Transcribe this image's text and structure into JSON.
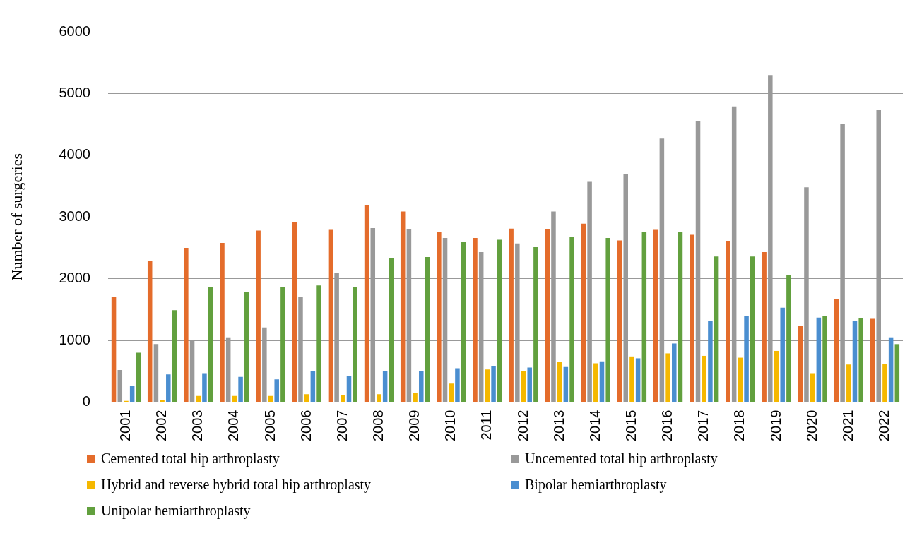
{
  "chart_data": {
    "type": "bar",
    "ylabel": "Number of surgeries",
    "categories": [
      "2001",
      "2002",
      "2003",
      "2004",
      "2005",
      "2006",
      "2007",
      "2008",
      "2009",
      "2010",
      "2011",
      "2012",
      "2013",
      "2014",
      "2015",
      "2016",
      "2017",
      "2018",
      "2019",
      "2020",
      "2021",
      "2022"
    ],
    "series": [
      {
        "name": "Cemented total hip arthroplasty",
        "color": "#e46c2b",
        "values": [
          1700,
          2290,
          2500,
          2580,
          2780,
          2910,
          2790,
          3190,
          3090,
          2760,
          2660,
          2810,
          2800,
          2890,
          2620,
          2790,
          2710,
          2610,
          2430,
          1230,
          1670,
          1350
        ]
      },
      {
        "name": "Uncemented total hip arthroplasty",
        "color": "#999999",
        "values": [
          520,
          940,
          1000,
          1050,
          1210,
          1700,
          2100,
          2820,
          2800,
          2660,
          2430,
          2570,
          3090,
          3570,
          3700,
          4270,
          4560,
          4790,
          5300,
          3480,
          4510,
          4730
        ]
      },
      {
        "name": "Hybrid and reverse hybrid total hip arthroplasty",
        "color": "#f5b800",
        "values": [
          20,
          40,
          100,
          100,
          100,
          130,
          110,
          130,
          150,
          300,
          530,
          500,
          650,
          630,
          740,
          790,
          750,
          720,
          830,
          470,
          610,
          620
        ]
      },
      {
        "name": "Bipolar hemiarthroplasty",
        "color": "#4a8ed0",
        "values": [
          260,
          450,
          470,
          410,
          370,
          510,
          420,
          510,
          510,
          550,
          590,
          560,
          570,
          660,
          710,
          950,
          1310,
          1400,
          1530,
          1370,
          1320,
          1050
        ]
      },
      {
        "name": "Unipolar hemiarthroplasty",
        "color": "#62a03e",
        "values": [
          800,
          1490,
          1870,
          1780,
          1870,
          1890,
          1860,
          2330,
          2350,
          2590,
          2630,
          2510,
          2680,
          2660,
          2760,
          2760,
          2360,
          2360,
          2060,
          1400,
          1360,
          940
        ]
      }
    ],
    "ylim": [
      0,
      6000
    ],
    "yticks": [
      0,
      1000,
      2000,
      3000,
      4000,
      5000,
      6000
    ],
    "grid": "y",
    "legend": "bottom"
  }
}
